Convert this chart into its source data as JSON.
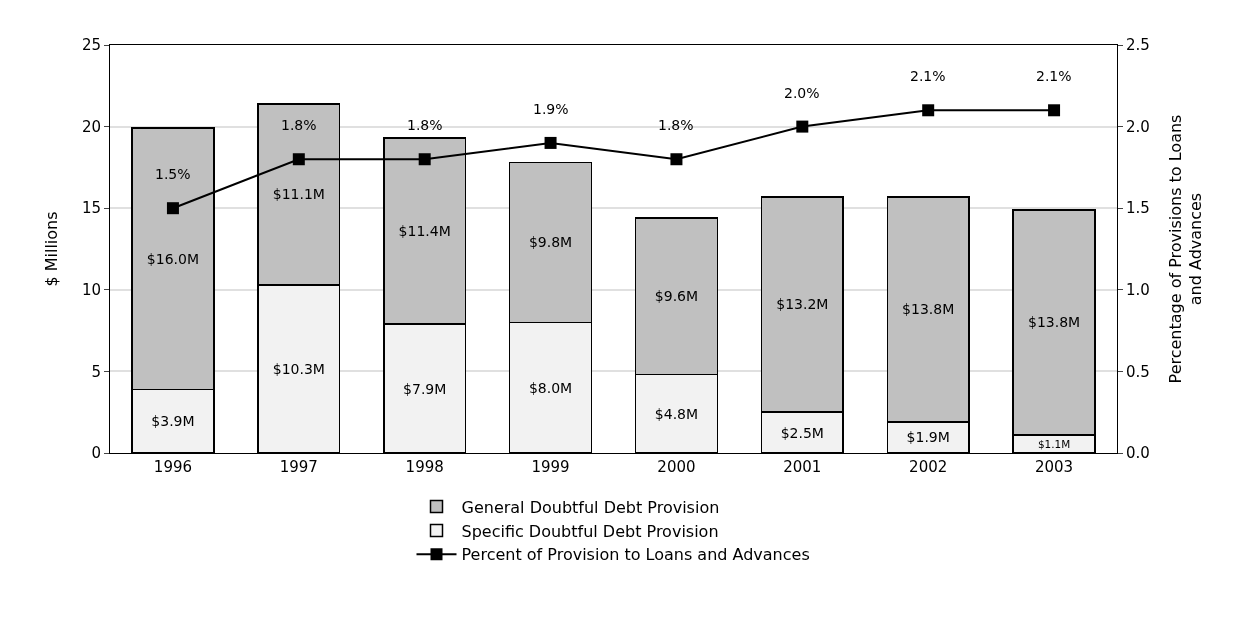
{
  "chart_data": {
    "type": "bar",
    "stacked": true,
    "ylabel": "$ Millions",
    "y2label": "Percentage of Provisions to Loans\nand Advances",
    "categories": [
      "1996",
      "1997",
      "1998",
      "1999",
      "2000",
      "2001",
      "2002",
      "2003"
    ],
    "series": [
      {
        "name": "Specific Doubtful Debt Provision",
        "color": "#f2f2f2",
        "values": [
          3.9,
          10.3,
          7.9,
          8.0,
          4.8,
          2.5,
          1.9,
          1.1
        ],
        "value_labels": [
          "$3.9M",
          "$10.3M",
          "$7.9M",
          "$8.0M",
          "$4.8M",
          "$2.5M",
          "$1.9M",
          "$1.1M"
        ]
      },
      {
        "name": "General Doubtful Debt Provision",
        "color": "#c0c0c0",
        "values": [
          16.0,
          11.1,
          11.4,
          9.8,
          9.6,
          13.2,
          13.8,
          13.8
        ],
        "value_labels": [
          "$16.0M",
          "$11.1M",
          "$11.4M",
          "$9.8M",
          "$9.6M",
          "$13.2M",
          "$13.8M",
          "$13.8M"
        ]
      },
      {
        "name": "Percent of Provision to Loans and Advances",
        "type": "line",
        "axis": "y2",
        "color": "#000000",
        "marker": "square",
        "line_style": "solid",
        "values": [
          1.5,
          1.8,
          1.8,
          1.9,
          1.8,
          2.0,
          2.1,
          2.1
        ],
        "value_labels": [
          "1.5%",
          "1.8%",
          "1.8%",
          "1.9%",
          "1.8%",
          "2.0%",
          "2.1%",
          "2.1%"
        ]
      }
    ],
    "ylim": [
      0,
      25
    ],
    "yticks": [
      0,
      5,
      10,
      15,
      20,
      25
    ],
    "y2lim": [
      0,
      2.5
    ],
    "y2ticks": [
      {
        "value": 0,
        "label": "0.0"
      },
      {
        "value": 0.5,
        "label": "0.5"
      },
      {
        "value": 1,
        "label": "1.0"
      },
      {
        "value": 1.5,
        "label": "1.5"
      },
      {
        "value": 2,
        "label": "2.0"
      },
      {
        "value": 2.5,
        "label": "2.5"
      }
    ],
    "grid": "y",
    "legend": "bottom"
  }
}
